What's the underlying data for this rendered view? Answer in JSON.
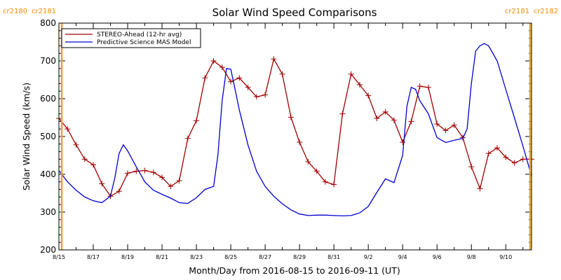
{
  "chart_data": {
    "type": "line",
    "title": "Solar Wind Speed Comparisons",
    "xlabel": "Month/Day from 2016-08-15 to 2016-09-11 (UT)",
    "ylabel": "Solar Wind Speed (km/s)",
    "xlim": [
      "2016-08-15T00:00",
      "2016-09-11T12:00"
    ],
    "ylim": [
      200,
      800
    ],
    "yticks": [
      200,
      300,
      400,
      500,
      600,
      700,
      800
    ],
    "xticks": [
      {
        "date": "2016-08-15",
        "label": "8/15"
      },
      {
        "date": "2016-08-17",
        "label": "8/17"
      },
      {
        "date": "2016-08-19",
        "label": "8/19"
      },
      {
        "date": "2016-08-21",
        "label": "8/21"
      },
      {
        "date": "2016-08-23",
        "label": "8/23"
      },
      {
        "date": "2016-08-25",
        "label": "8/25"
      },
      {
        "date": "2016-08-27",
        "label": "8/27"
      },
      {
        "date": "2016-08-29",
        "label": "8/29"
      },
      {
        "date": "2016-08-31",
        "label": "8/31"
      },
      {
        "date": "2016-09-02",
        "label": "9/2"
      },
      {
        "date": "2016-09-04",
        "label": "9/4"
      },
      {
        "date": "2016-09-06",
        "label": "9/6"
      },
      {
        "date": "2016-09-08",
        "label": "9/8"
      },
      {
        "date": "2016-09-10",
        "label": "9/10"
      }
    ],
    "carrington_markers": [
      {
        "date": "2016-08-15T04:00",
        "labels": [
          "cr2180",
          "cr2181"
        ],
        "side": "left"
      },
      {
        "date": "2016-09-11T10:00",
        "labels": [
          "cr2181",
          "cr2182"
        ],
        "side": "right"
      }
    ],
    "legend_position": "top-left",
    "series": [
      {
        "name": "STEREO-Ahead (12-hr avg)",
        "color": "#a00000",
        "marker": "plus",
        "x": [
          "2016-08-15T00:00",
          "2016-08-15T12:00",
          "2016-08-16T00:00",
          "2016-08-16T12:00",
          "2016-08-17T00:00",
          "2016-08-17T12:00",
          "2016-08-18T00:00",
          "2016-08-18T12:00",
          "2016-08-19T00:00",
          "2016-08-19T12:00",
          "2016-08-20T00:00",
          "2016-08-20T12:00",
          "2016-08-21T00:00",
          "2016-08-21T12:00",
          "2016-08-22T00:00",
          "2016-08-22T12:00",
          "2016-08-23T00:00",
          "2016-08-23T12:00",
          "2016-08-24T00:00",
          "2016-08-24T12:00",
          "2016-08-25T00:00",
          "2016-08-25T12:00",
          "2016-08-26T00:00",
          "2016-08-26T12:00",
          "2016-08-27T00:00",
          "2016-08-27T12:00",
          "2016-08-28T00:00",
          "2016-08-28T12:00",
          "2016-08-29T00:00",
          "2016-08-29T12:00",
          "2016-08-30T00:00",
          "2016-08-30T12:00",
          "2016-08-31T00:00",
          "2016-08-31T12:00",
          "2016-09-01T00:00",
          "2016-09-01T12:00",
          "2016-09-02T00:00",
          "2016-09-02T12:00",
          "2016-09-03T00:00",
          "2016-09-03T12:00",
          "2016-09-04T00:00",
          "2016-09-04T12:00",
          "2016-09-05T00:00",
          "2016-09-05T12:00",
          "2016-09-06T00:00",
          "2016-09-06T12:00",
          "2016-09-07T00:00",
          "2016-09-07T12:00",
          "2016-09-08T00:00",
          "2016-09-08T12:00",
          "2016-09-09T00:00",
          "2016-09-09T12:00",
          "2016-09-10T00:00",
          "2016-09-10T12:00",
          "2016-09-11T00:00",
          "2016-09-11T12:00"
        ],
        "y": [
          548,
          520,
          478,
          440,
          425,
          375,
          342,
          355,
          403,
          408,
          410,
          405,
          392,
          368,
          383,
          495,
          542,
          655,
          700,
          683,
          645,
          655,
          630,
          605,
          610,
          705,
          665,
          551,
          485,
          433,
          408,
          380,
          373,
          560,
          665,
          637,
          608,
          548,
          565,
          543,
          485,
          540,
          633,
          630,
          533,
          516,
          530,
          497,
          420,
          362,
          455,
          470,
          445,
          430,
          440,
          440
        ]
      },
      {
        "name": "Predictive Science MAS Model",
        "color": "#0000d0",
        "marker": "none",
        "x": [
          "2016-08-15T00:00",
          "2016-08-15T12:00",
          "2016-08-16T00:00",
          "2016-08-16T12:00",
          "2016-08-17T00:00",
          "2016-08-17T12:00",
          "2016-08-18T00:00",
          "2016-08-18T06:00",
          "2016-08-18T12:00",
          "2016-08-18T18:00",
          "2016-08-19T00:00",
          "2016-08-19T12:00",
          "2016-08-20T00:00",
          "2016-08-20T12:00",
          "2016-08-21T00:00",
          "2016-08-21T12:00",
          "2016-08-22T00:00",
          "2016-08-22T12:00",
          "2016-08-23T00:00",
          "2016-08-23T12:00",
          "2016-08-24T00:00",
          "2016-08-24T06:00",
          "2016-08-24T12:00",
          "2016-08-24T18:00",
          "2016-08-25T00:00",
          "2016-08-25T06:00",
          "2016-08-25T12:00",
          "2016-08-26T00:00",
          "2016-08-26T12:00",
          "2016-08-27T00:00",
          "2016-08-27T12:00",
          "2016-08-28T00:00",
          "2016-08-28T12:00",
          "2016-08-29T00:00",
          "2016-08-29T12:00",
          "2016-08-30T00:00",
          "2016-08-30T12:00",
          "2016-08-31T00:00",
          "2016-08-31T12:00",
          "2016-09-01T00:00",
          "2016-09-01T12:00",
          "2016-09-02T00:00",
          "2016-09-02T12:00",
          "2016-09-03T00:00",
          "2016-09-03T12:00",
          "2016-09-04T00:00",
          "2016-09-04T06:00",
          "2016-09-04T12:00",
          "2016-09-04T18:00",
          "2016-09-05T00:00",
          "2016-09-05T12:00",
          "2016-09-06T00:00",
          "2016-09-06T12:00",
          "2016-09-07T00:00",
          "2016-09-07T12:00",
          "2016-09-07T18:00",
          "2016-09-08T00:00",
          "2016-09-08T06:00",
          "2016-09-08T12:00",
          "2016-09-08T18:00",
          "2016-09-09T00:00",
          "2016-09-09T12:00",
          "2016-09-10T00:00",
          "2016-09-10T12:00",
          "2016-09-11T00:00",
          "2016-09-11T12:00"
        ],
        "y": [
          410,
          380,
          358,
          340,
          330,
          325,
          342,
          390,
          455,
          478,
          462,
          420,
          380,
          358,
          347,
          337,
          325,
          323,
          338,
          360,
          368,
          450,
          595,
          680,
          678,
          625,
          570,
          478,
          408,
          368,
          342,
          322,
          306,
          295,
          291,
          292,
          292,
          291,
          290,
          291,
          298,
          315,
          352,
          388,
          378,
          450,
          580,
          630,
          625,
          595,
          560,
          497,
          484,
          490,
          495,
          520,
          640,
          726,
          740,
          746,
          740,
          700,
          625,
          550,
          475,
          395
        ]
      }
    ]
  }
}
